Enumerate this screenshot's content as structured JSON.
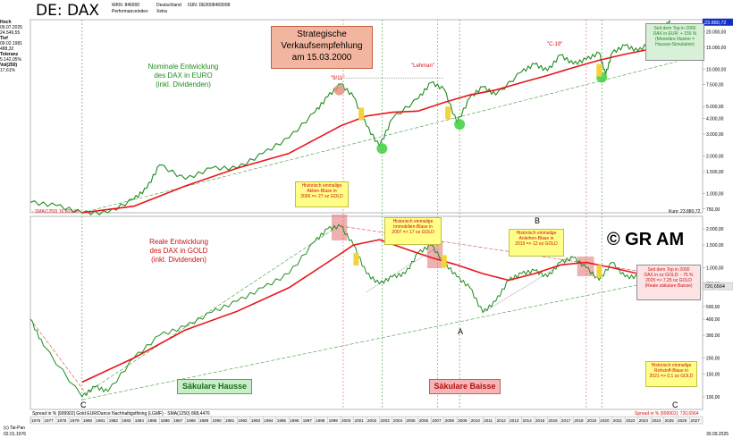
{
  "header": {
    "title": "DE: DAX",
    "wkn_label": "WKN: 846900",
    "type_label": "Performanceindex",
    "country_label": "Deutschland",
    "exchange_label": "Xetra",
    "isin_label": "ISIN: DE0008469008"
  },
  "sidebar": {
    "hoch_label": "Hoch",
    "hoch_date": "09.07.2025",
    "hoch_value": "24.549,55",
    "tief_label": "Tief",
    "tief_date": "09.02.1981",
    "tief_value": "488,32",
    "toleranz_label": "Toleranz",
    "toleranz_value": "5.142,05%",
    "vol_label": "Vol(250)",
    "vol_value": "17,61%"
  },
  "top_panel": {
    "title_lines": [
      "Nominale Entwicklung",
      "des DAX in EURO",
      "(inkl. Dividenden)"
    ],
    "recommendation_lines": [
      "Strategische",
      "Verkaufsempfehlung",
      "am 15.03.2000"
    ],
    "note_lines": [
      "Seit dem Top in 2000",
      "DAX in EUR: + 155 %",
      "(Monetäre Illusion =",
      "Hausse-Simulation)"
    ],
    "bubble_note_lines": [
      "Historisch einmalige",
      "Aktien-Blase in",
      "2000 => 27 oz GOLD"
    ],
    "label_911": "\"9/11\"",
    "label_lehman": "\"Lehman\"",
    "label_c19": "\"C-19\"",
    "sma_label": "- SMA(1250) 16.803,66",
    "kurs_label": "Kurs: 23.880,72",
    "last_value": "23.880,72",
    "axis_ticks": [
      "20.000,00",
      "15.000,00",
      "10.000,00",
      "7.500,00",
      "5.000,00",
      "4.000,00",
      "3.000,00",
      "2.000,00",
      "1.500,00",
      "1.000,00",
      "750,00"
    ]
  },
  "bottom_panel": {
    "title_lines": [
      "Reale Entwicklung",
      "des DAX in GOLD",
      "(inkl. Dividenden)"
    ],
    "copyright": "© GR AM",
    "note_immo_lines": [
      "Historisch einmalige",
      "Immobilien-Blase in",
      "2007 => 17 oz GOLD"
    ],
    "note_anleihen_lines": [
      "Historisch einmalige",
      "Anleihen-Blase in",
      "2019 => 12 oz GOLD"
    ],
    "note_real_lines": [
      "Seit dem Top in 2000",
      "DAX in oz GOLD: - 75 %",
      "2025 => 7,25 oz GOLD",
      "(Reale säkulare Baisse)"
    ],
    "note_rohstoff_lines": [
      "Historisch einmalige",
      "Rohstoff-Blase in",
      "2021 => 0,1 oz GOLD"
    ],
    "hausse_label": "Säkulare Hausse",
    "baisse_label": "Säkulare Baisse",
    "point_a": "A",
    "point_b": "B",
    "point_c_left": "C",
    "point_c_right": "C",
    "axis_ticks": [
      "2.000,00",
      "1.500,00",
      "1.000,00",
      "750,00",
      "500,00",
      "400,00",
      "300,00",
      "200,00",
      "150,00",
      "100,00"
    ],
    "last_value": "720,6564",
    "footer_left": "Spread in % |999902| Gold EUR/Dance Nachhaltigstfixing (LGMF) - SMA(1250) 868,4476",
    "footer_right": "Spread in % |999902|: 720,6564"
  },
  "x_axis": {
    "years": [
      "1976",
      "1977",
      "1978",
      "1979",
      "1980",
      "1981",
      "1982",
      "1983",
      "1984",
      "1985",
      "1986",
      "1987",
      "1988",
      "1989",
      "1990",
      "1991",
      "1992",
      "1993",
      "1994",
      "1995",
      "1996",
      "1997",
      "1998",
      "1999",
      "2000",
      "2001",
      "2002",
      "2003",
      "2004",
      "2005",
      "2006",
      "2007",
      "2008",
      "2009",
      "2010",
      "2011",
      "2012",
      "2013",
      "2014",
      "2015",
      "2016",
      "2017",
      "2018",
      "2019",
      "2020",
      "2021",
      "2022",
      "2023",
      "2024",
      "2025",
      "2026",
      "2027"
    ],
    "start_date": "02.01.1976",
    "end_date": "30.09.2025",
    "source": "(c) Tai-Pan"
  },
  "colors": {
    "price_green": "#1e8c1e",
    "sma_red": "#e8141a",
    "trend_green": "#3c9a3c",
    "trend_red": "#d44444",
    "note_yellow": "#ffff88",
    "rec_box": "#f2b6a0",
    "last_blue": "#1030c0"
  },
  "chart_data": [
    {
      "type": "line",
      "title": "Nominale Entwicklung des DAX in EURO (inkl. Dividenden)",
      "log_scale": true,
      "ylim": [
        700,
        25000
      ],
      "series": [
        {
          "name": "DAX",
          "x": [
            1976,
            1978,
            1980,
            1982,
            1984,
            1985,
            1986,
            1988,
            1990,
            1992,
            1994,
            1996,
            1998,
            1999,
            2000,
            2001,
            2002,
            2003,
            2004,
            2006,
            2007,
            2008,
            2009,
            2010,
            2011,
            2012,
            2014,
            2015,
            2016,
            2017,
            2018,
            2019,
            2020,
            2020.5,
            2021,
            2022,
            2023,
            2024,
            2025,
            2025.5
          ],
          "y": [
            850,
            800,
            700,
            700,
            900,
            1100,
            1700,
            1300,
            1600,
            1600,
            2100,
            2800,
            4500,
            6000,
            7600,
            6000,
            3500,
            2400,
            4000,
            5800,
            7800,
            6900,
            3700,
            5900,
            7200,
            6200,
            9500,
            11000,
            9700,
            13000,
            11000,
            12000,
            13500,
            9000,
            13500,
            15500,
            14000,
            16500,
            22000,
            23880
          ]
        },
        {
          "name": "SMA(1250)",
          "x": [
            1980,
            1984,
            1988,
            1992,
            1996,
            2000,
            2002,
            2004,
            2006,
            2008,
            2010,
            2012,
            2014,
            2016,
            2018,
            2020,
            2022,
            2024,
            2025.5
          ],
          "y": [
            700,
            790,
            1150,
            1600,
            2100,
            3500,
            4200,
            4500,
            4600,
            5400,
            6200,
            6800,
            7800,
            8900,
            10300,
            11800,
            13200,
            14500,
            16800
          ]
        }
      ]
    },
    {
      "type": "line",
      "title": "Reale Entwicklung des DAX in GOLD (inkl. Dividenden)",
      "log_scale": true,
      "ylim": [
        80,
        2500
      ],
      "series": [
        {
          "name": "Spread in % |999902|",
          "x": [
            1976,
            1977,
            1980,
            1981,
            1982,
            1984,
            1986,
            1988,
            1990,
            1992,
            1994,
            1996,
            1998,
            1999,
            2000,
            2001,
            2002,
            2003,
            2004,
            2005,
            2006,
            2007,
            2008,
            2009,
            2010,
            2011,
            2012,
            2013,
            2014,
            2015,
            2016,
            2017,
            2018,
            2019,
            2020,
            2021,
            2022,
            2023,
            2024,
            2025,
            2025.5
          ],
          "y": [
            400,
            250,
            100,
            120,
            110,
            200,
            300,
            350,
            450,
            550,
            700,
            900,
            1600,
            2000,
            2100,
            1500,
            900,
            750,
            850,
            900,
            1300,
            1500,
            1100,
            850,
            700,
            450,
            550,
            800,
            900,
            950,
            850,
            1100,
            1200,
            1000,
            800,
            1100,
            850,
            850,
            800,
            750,
            720
          ]
        },
        {
          "name": "SMA(1250)",
          "x": [
            1980,
            1984,
            1988,
            1992,
            1996,
            1999,
            2001,
            2003,
            2005,
            2007,
            2009,
            2011,
            2013,
            2015,
            2017,
            2019,
            2021,
            2023,
            2025.5
          ],
          "y": [
            130,
            200,
            330,
            460,
            700,
            1100,
            1500,
            1650,
            1400,
            1200,
            1050,
            900,
            800,
            900,
            1050,
            1100,
            1000,
            900,
            870
          ]
        }
      ]
    }
  ]
}
